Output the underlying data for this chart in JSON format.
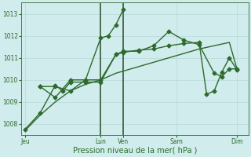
{
  "background_color": "#d0ecec",
  "grid_color": "#b8d8d8",
  "line_color": "#2d6a2d",
  "xlabel": "Pression niveau de la mer( hPa )",
  "ylim": [
    1007.5,
    1013.5
  ],
  "yticks": [
    1008,
    1009,
    1010,
    1011,
    1012,
    1013
  ],
  "day_labels": [
    "Jeu",
    "Lun",
    "Ven",
    "Sam",
    "Dim"
  ],
  "day_positions": [
    0,
    10,
    13,
    20,
    28
  ],
  "vline_positions": [
    10,
    13
  ],
  "total_points": 30,
  "series": [
    {
      "x": [
        0,
        2,
        4,
        6,
        8,
        10,
        12,
        13,
        15,
        17,
        19,
        21,
        23,
        25,
        27,
        28
      ],
      "y": [
        1007.7,
        1008.4,
        1009.0,
        1009.5,
        1009.8,
        1010.0,
        1010.3,
        1010.4,
        1010.6,
        1010.8,
        1011.0,
        1011.2,
        1011.4,
        1011.55,
        1011.7,
        1010.5
      ],
      "marker": null,
      "linewidth": 1.0
    },
    {
      "x": [
        2,
        4,
        6,
        8,
        10,
        12,
        13,
        15,
        17,
        19,
        21,
        23,
        25,
        26,
        27,
        28
      ],
      "y": [
        1009.7,
        1009.7,
        1009.5,
        1010.0,
        1010.0,
        1011.15,
        1011.3,
        1011.3,
        1011.55,
        1012.2,
        1011.8,
        1011.6,
        1010.3,
        1010.15,
        1010.5,
        1010.5
      ],
      "marker": "D",
      "linewidth": 1.0
    },
    {
      "x": [
        2,
        4,
        6,
        8,
        10,
        11,
        12,
        13
      ],
      "y": [
        1009.7,
        1009.2,
        1010.0,
        1010.0,
        1011.9,
        1012.0,
        1012.5,
        1013.2
      ],
      "marker": "D",
      "linewidth": 1.0
    },
    {
      "x": [
        0,
        2,
        4,
        5,
        6,
        8,
        10,
        12,
        13,
        15,
        17,
        19,
        21,
        23,
        24,
        25,
        26,
        27,
        28
      ],
      "y": [
        1007.75,
        1008.5,
        1009.75,
        1009.5,
        1009.9,
        1009.9,
        1009.9,
        1011.15,
        1011.25,
        1011.35,
        1011.4,
        1011.55,
        1011.65,
        1011.7,
        1009.35,
        1009.5,
        1010.35,
        1011.0,
        1010.45
      ],
      "marker": "D",
      "linewidth": 1.0
    }
  ]
}
